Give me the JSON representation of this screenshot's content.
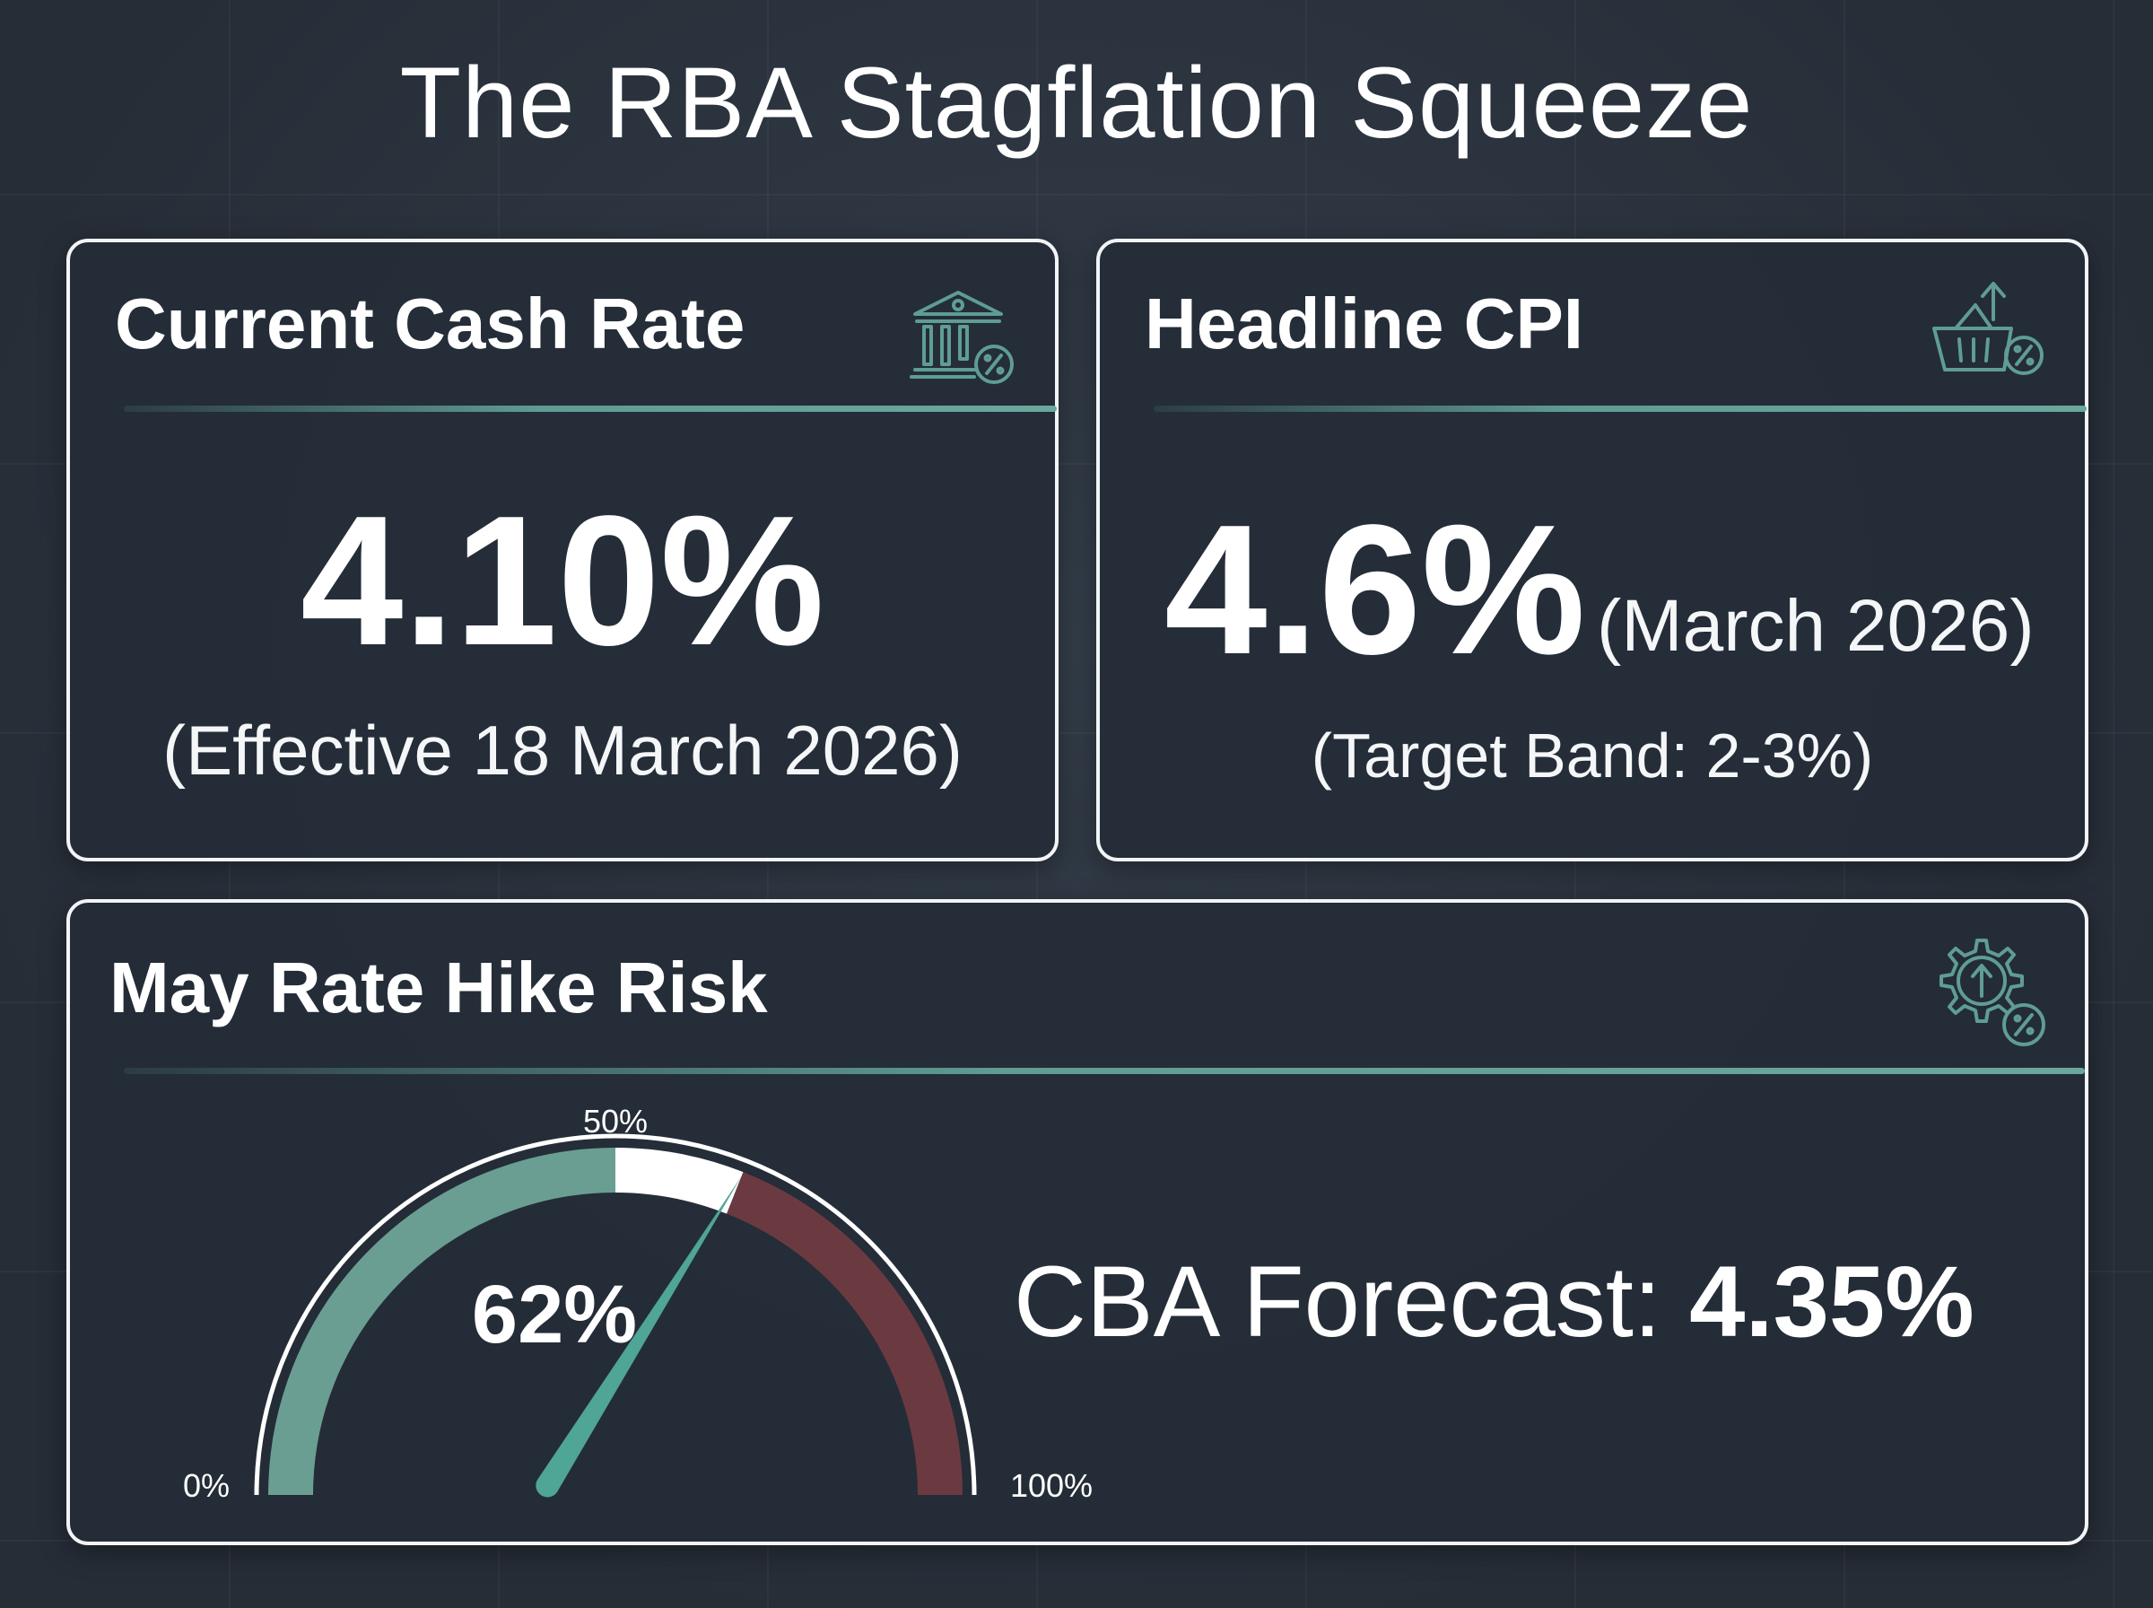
{
  "page": {
    "title": "The RBA Stagflation Squeeze"
  },
  "cash_rate": {
    "heading": "Current Cash Rate",
    "value": "4.10%",
    "note": "(Effective 18 March 2026)",
    "icon": "bank-percent-icon"
  },
  "cpi": {
    "heading": "Headline CPI",
    "value": "4.6%",
    "period": "(March 2026)",
    "note": "(Target Band: 2-3%)",
    "icon": "basket-up-arrow-percent-icon"
  },
  "hike_risk": {
    "heading": "May Rate Hike Risk",
    "icon": "gear-up-arrow-percent-icon",
    "gauge": {
      "value": 62,
      "value_label": "62%",
      "min_label": "0%",
      "mid_label": "50%",
      "max_label": "100%",
      "colors": {
        "low": "#6a9e92",
        "mid": "#ffffff",
        "high": "#6b3a41",
        "needle": "#4fa596"
      }
    },
    "forecast_label": "CBA Forecast:",
    "forecast_value": "4.35%"
  },
  "colors": {
    "background": "#2a323d",
    "card": "#242c37",
    "accent": "#5f9d93",
    "text": "#ffffff"
  }
}
